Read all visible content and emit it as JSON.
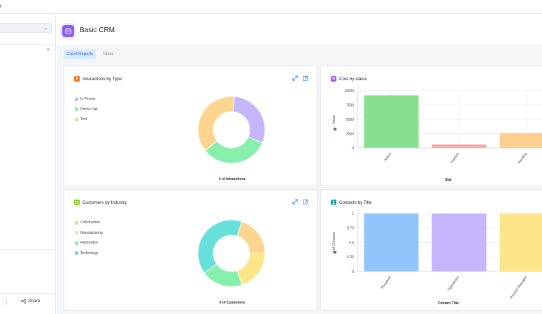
{
  "top": {
    "partial_text": "e"
  },
  "sidebar": {
    "share_label": "Share"
  },
  "app": {
    "title": "Basic CRM"
  },
  "tabs": [
    {
      "label": "Client Reports",
      "active": true
    },
    {
      "label": "Tasks",
      "active": false
    }
  ],
  "cards": {
    "interactions": {
      "title": "Interactions by Type",
      "icon_letter": "A",
      "icon_color": "#f97316"
    },
    "cost": {
      "title": "Cost by status",
      "icon_letter": "B",
      "icon_color": "#a855f7"
    },
    "customers": {
      "title": "Customers by Industry",
      "icon_color": "#84cc16"
    },
    "contacts": {
      "title": "Contacts by Title",
      "icon_color": "#0ea5a4"
    }
  },
  "chart_data": [
    {
      "type": "pie",
      "title": "Interactions by Type",
      "xlabel": "# of Interactions",
      "categories": [
        "In Person",
        "Phone Call",
        "Text"
      ],
      "values": [
        30,
        33,
        37
      ],
      "colors": [
        "#c4b5fd",
        "#86efac",
        "#fdd58f"
      ],
      "legend": "left"
    },
    {
      "type": "bar",
      "title": "Cost by status",
      "xlabel": "Stat",
      "ylabel": "Value",
      "categories": [
        "Active",
        "Inactive",
        "Pending"
      ],
      "values": [
        9200,
        600,
        2600
      ],
      "colors": [
        "#86e08f",
        "#f9a8a8",
        "#fdcf8f"
      ],
      "ylim": [
        0,
        10000
      ],
      "yticks": [
        "0",
        "2500",
        "5000",
        "7500",
        "10000"
      ],
      "grid": true
    },
    {
      "type": "pie",
      "title": "Customers by Industry",
      "xlabel": "# of Customers",
      "categories": [
        "Construction",
        "Manufacturing",
        "Restoration",
        "Technology"
      ],
      "values": [
        20,
        20,
        20,
        40
      ],
      "colors": [
        "#fdd58f",
        "#fde68a",
        "#86efac",
        "#67e0dc"
      ],
      "legend": "left"
    },
    {
      "type": "bar",
      "title": "Contacts by Title",
      "xlabel": "Contact Title",
      "ylabel": "# of Contacts",
      "categories": [
        "President",
        "Operations",
        "Product Manager"
      ],
      "values": [
        1,
        1,
        1
      ],
      "colors": [
        "#93c5fd",
        "#c4b5fd",
        "#fde68a"
      ],
      "ylim": [
        0,
        1
      ],
      "yticks": [
        "0",
        "0.25",
        "0.5",
        "0.75",
        "1"
      ],
      "grid": true
    }
  ]
}
